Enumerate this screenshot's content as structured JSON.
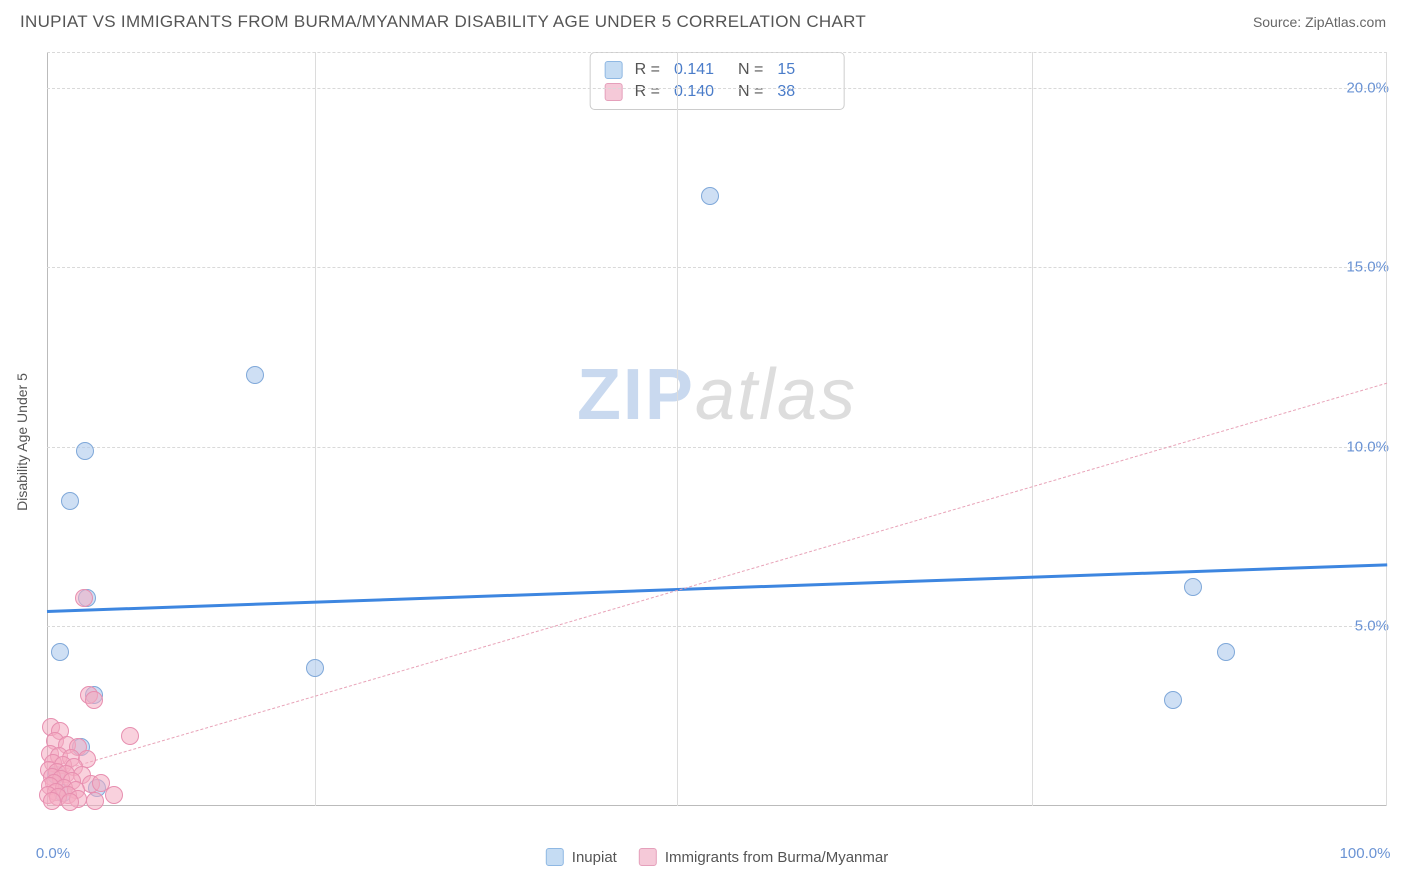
{
  "header": {
    "title": "INUPIAT VS IMMIGRANTS FROM BURMA/MYANMAR DISABILITY AGE UNDER 5 CORRELATION CHART",
    "source": "Source: ZipAtlas.com"
  },
  "chart": {
    "type": "scatter",
    "y_axis_label": "Disability Age Under 5",
    "background_color": "#ffffff",
    "grid_color": "#d9d9d9",
    "axis_color": "#bbbbbb",
    "tick_label_color": "#6a93d4",
    "tick_fontsize": 15,
    "label_fontsize": 14,
    "xlim": [
      0,
      100
    ],
    "ylim": [
      0,
      21
    ],
    "x_ticks": [
      {
        "value": 0,
        "label": "0.0%"
      },
      {
        "value": 100,
        "label": "100.0%"
      }
    ],
    "x_gridlines": [
      20,
      47,
      73.5,
      100
    ],
    "y_ticks": [
      {
        "value": 5,
        "label": "5.0%"
      },
      {
        "value": 10,
        "label": "10.0%"
      },
      {
        "value": 15,
        "label": "15.0%"
      },
      {
        "value": 20,
        "label": "20.0%"
      }
    ],
    "series": [
      {
        "name": "Inupiat",
        "marker_color_fill": "rgba(173,202,237,0.6)",
        "marker_color_stroke": "#7fa8d9",
        "marker_radius": 9,
        "trendline": {
          "x1": 0,
          "y1": 5.45,
          "x2": 100,
          "y2": 6.75,
          "color": "#3d86e0",
          "width": 3,
          "style": "solid"
        },
        "stats": {
          "R": "0.141",
          "N": "15"
        },
        "points": [
          {
            "x": 49.5,
            "y": 17.0
          },
          {
            "x": 15.5,
            "y": 12.0
          },
          {
            "x": 2.8,
            "y": 9.9
          },
          {
            "x": 1.7,
            "y": 8.5
          },
          {
            "x": 85.5,
            "y": 6.1
          },
          {
            "x": 3.0,
            "y": 5.8
          },
          {
            "x": 88.0,
            "y": 4.3
          },
          {
            "x": 1.0,
            "y": 4.3
          },
          {
            "x": 20.0,
            "y": 3.85
          },
          {
            "x": 84.0,
            "y": 2.95
          },
          {
            "x": 3.5,
            "y": 3.1
          },
          {
            "x": 2.5,
            "y": 1.65
          },
          {
            "x": 0.7,
            "y": 0.85
          },
          {
            "x": 1.2,
            "y": 0.35
          },
          {
            "x": 3.7,
            "y": 0.5
          }
        ]
      },
      {
        "name": "Immigrants from Burma/Myanmar",
        "marker_color_fill": "rgba(244,172,193,0.55)",
        "marker_color_stroke": "#e78fb0",
        "marker_radius": 9,
        "trendline": {
          "x1": 0,
          "y1": 0.9,
          "x2": 100,
          "y2": 11.8,
          "color": "#e8a3b8",
          "width": 1.5,
          "style": "dashed"
        },
        "stats": {
          "R": "0.140",
          "N": "38"
        },
        "points": [
          {
            "x": 2.75,
            "y": 5.8
          },
          {
            "x": 3.1,
            "y": 3.1
          },
          {
            "x": 3.5,
            "y": 2.95
          },
          {
            "x": 0.3,
            "y": 2.2
          },
          {
            "x": 1.0,
            "y": 2.1
          },
          {
            "x": 6.2,
            "y": 1.95
          },
          {
            "x": 0.6,
            "y": 1.8
          },
          {
            "x": 1.5,
            "y": 1.7
          },
          {
            "x": 2.3,
            "y": 1.65
          },
          {
            "x": 0.2,
            "y": 1.45
          },
          {
            "x": 0.9,
            "y": 1.4
          },
          {
            "x": 1.8,
            "y": 1.35
          },
          {
            "x": 3.0,
            "y": 1.3
          },
          {
            "x": 0.45,
            "y": 1.2
          },
          {
            "x": 1.2,
            "y": 1.15
          },
          {
            "x": 2.05,
            "y": 1.1
          },
          {
            "x": 0.15,
            "y": 1.0
          },
          {
            "x": 0.75,
            "y": 0.95
          },
          {
            "x": 1.45,
            "y": 0.9
          },
          {
            "x": 2.6,
            "y": 0.85
          },
          {
            "x": 0.35,
            "y": 0.8
          },
          {
            "x": 1.05,
            "y": 0.75
          },
          {
            "x": 1.85,
            "y": 0.7
          },
          {
            "x": 0.55,
            "y": 0.65
          },
          {
            "x": 3.3,
            "y": 0.6
          },
          {
            "x": 0.25,
            "y": 0.55
          },
          {
            "x": 1.25,
            "y": 0.5
          },
          {
            "x": 2.15,
            "y": 0.45
          },
          {
            "x": 0.65,
            "y": 0.4
          },
          {
            "x": 4.0,
            "y": 0.65
          },
          {
            "x": 0.1,
            "y": 0.3
          },
          {
            "x": 1.55,
            "y": 0.3
          },
          {
            "x": 0.85,
            "y": 0.25
          },
          {
            "x": 2.35,
            "y": 0.2
          },
          {
            "x": 0.4,
            "y": 0.15
          },
          {
            "x": 5.0,
            "y": 0.3
          },
          {
            "x": 1.75,
            "y": 0.1
          },
          {
            "x": 3.6,
            "y": 0.15
          }
        ]
      }
    ],
    "watermark": {
      "part1": "ZIP",
      "part2": "atlas"
    },
    "bottom_legend": [
      {
        "swatch": "blue",
        "label": "Inupiat"
      },
      {
        "swatch": "pink",
        "label": "Immigrants from Burma/Myanmar"
      }
    ]
  }
}
